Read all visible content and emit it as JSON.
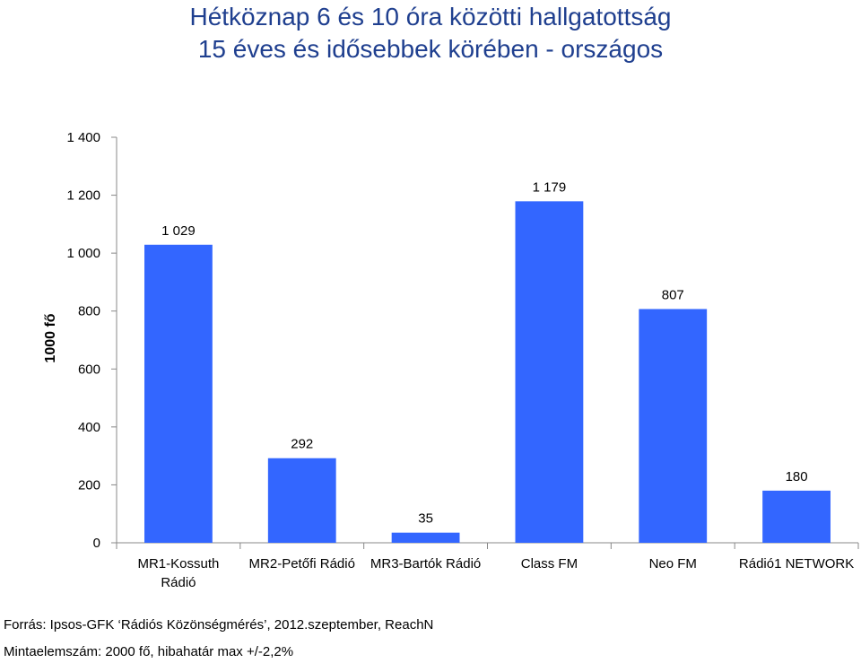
{
  "chart_data": {
    "type": "bar",
    "title": "Hétköznap 6 és 10 óra közötti hallgatottság",
    "subtitle": "15 éves és idősebbek körében - országos",
    "ylabel": "1000 fő",
    "xlabel": "",
    "ylim": [
      0,
      1400
    ],
    "yticks": [
      0,
      200,
      400,
      600,
      800,
      1000,
      1200,
      1400
    ],
    "ytick_labels": [
      "0",
      "200",
      "400",
      "600",
      "800",
      "1 000",
      "1 200",
      "1 400"
    ],
    "categories": [
      [
        "MR1-Kossuth",
        "Rádió"
      ],
      [
        "MR2-Petőfi Rádió"
      ],
      [
        "MR3-Bartók Rádió"
      ],
      [
        "Class FM"
      ],
      [
        "Neo FM"
      ],
      [
        "Rádió1 NETWORK"
      ]
    ],
    "values": [
      1029,
      292,
      35,
      1179,
      807,
      180
    ],
    "data_labels": [
      "1 029",
      "292",
      "35",
      "1 179",
      "807",
      "180"
    ],
    "bar_color": "#3366ff",
    "grid": false,
    "legend": "none"
  },
  "footer": {
    "source": "Forrás: Ipsos-GFK ‘Rádiós Közönségmérés’, 2012.szeptember, ReachN",
    "sample": "Mintaelemszám: 2000 fő, hibahatár max +/-2,2%"
  }
}
